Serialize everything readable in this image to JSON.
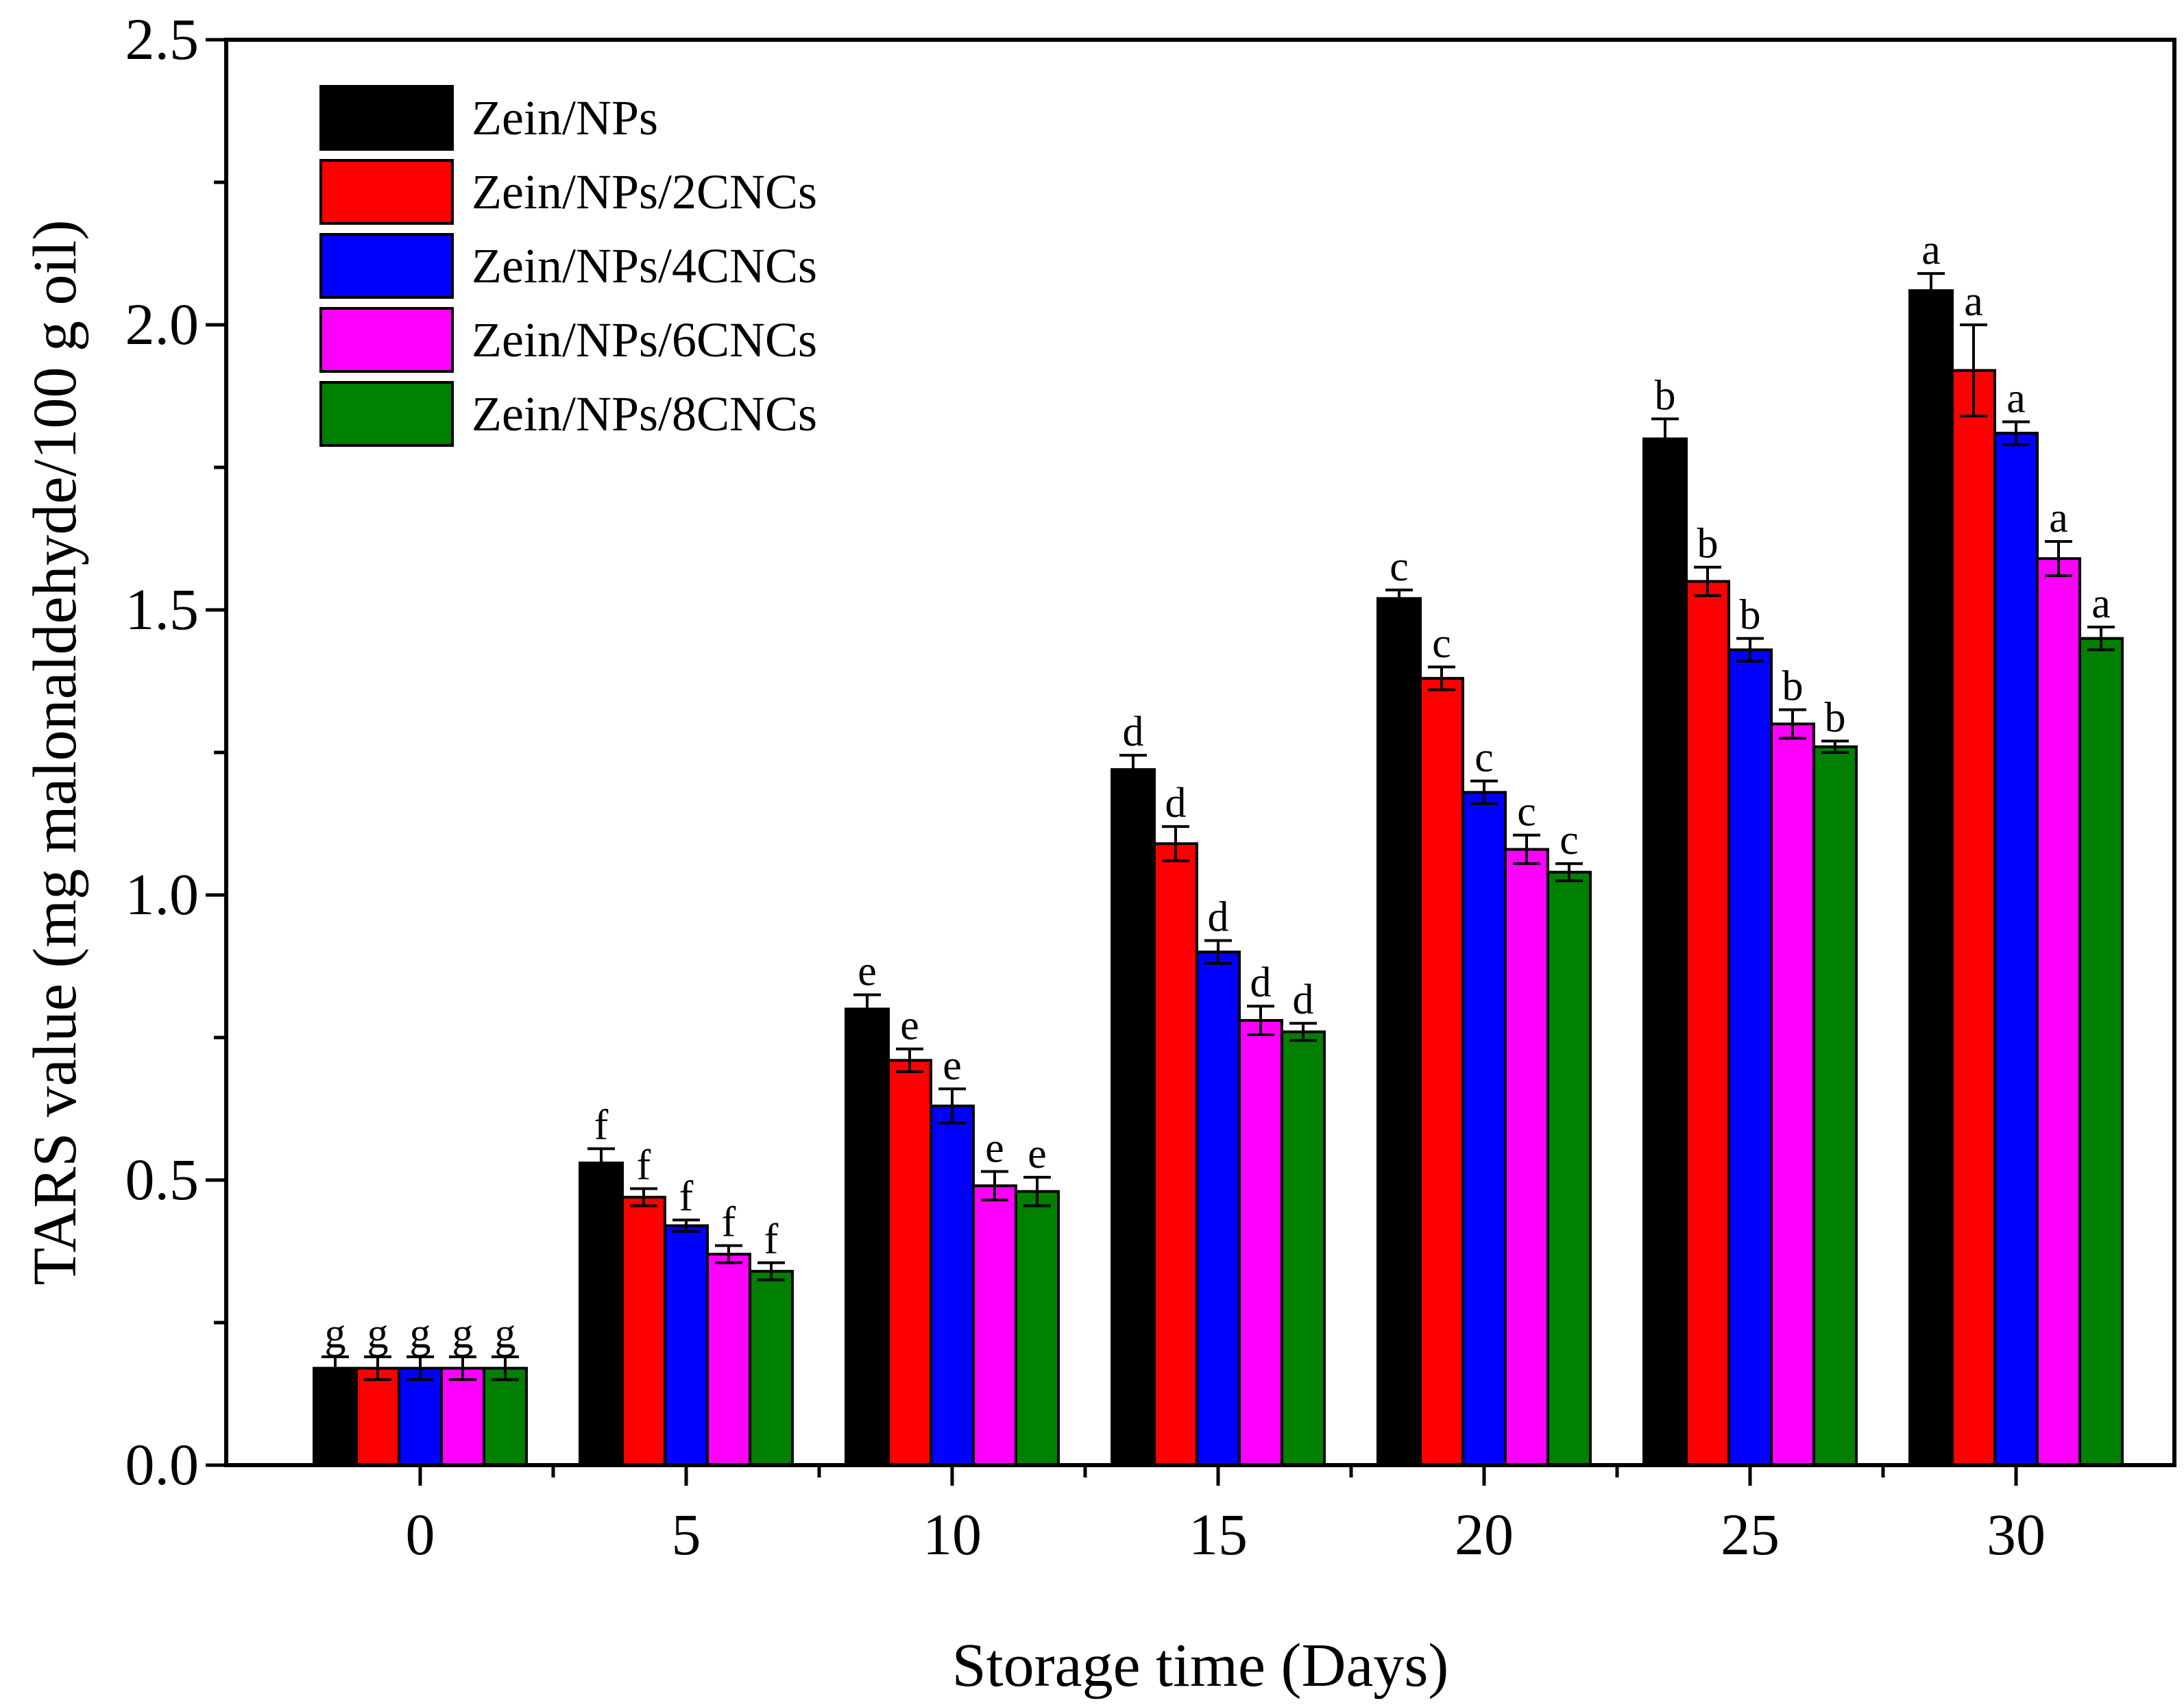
{
  "chart_data": {
    "type": "bar",
    "title": "",
    "xlabel": "Storage time (Days)",
    "ylabel": "TARS value (mg malonaldehyde/100 g oil)",
    "ylim": [
      0,
      2.5
    ],
    "yticks": [
      "0.0",
      "0.5",
      "1.0",
      "1.5",
      "2.0",
      "2.5"
    ],
    "categories": [
      "0",
      "5",
      "10",
      "15",
      "20",
      "25",
      "30"
    ],
    "legend_position": "top-left",
    "series": [
      {
        "name": "Zein/NPs",
        "color": "#000000",
        "values": [
          0.17,
          0.53,
          0.8,
          1.22,
          1.52,
          1.8,
          2.06
        ],
        "errors": [
          0.02,
          0.025,
          0.025,
          0.025,
          0.015,
          0.035,
          0.03
        ],
        "letters": [
          "g",
          "f",
          "e",
          "d",
          "c",
          "b",
          "a"
        ]
      },
      {
        "name": "Zein/NPs/2CNCs",
        "color": "#ff0000",
        "values": [
          0.17,
          0.47,
          0.71,
          1.09,
          1.38,
          1.55,
          1.92
        ],
        "errors": [
          0.02,
          0.015,
          0.02,
          0.03,
          0.02,
          0.025,
          0.08
        ],
        "letters": [
          "g",
          "f",
          "e",
          "d",
          "c",
          "b",
          "a"
        ]
      },
      {
        "name": "Zein/NPs/4CNCs",
        "color": "#0000ff",
        "values": [
          0.17,
          0.42,
          0.63,
          0.9,
          1.18,
          1.43,
          1.81
        ],
        "errors": [
          0.02,
          0.01,
          0.03,
          0.02,
          0.02,
          0.02,
          0.02
        ],
        "letters": [
          "g",
          "f",
          "e",
          "d",
          "c",
          "b",
          "a"
        ]
      },
      {
        "name": "Zein/NPs/6CNCs",
        "color": "#ff00ff",
        "values": [
          0.17,
          0.37,
          0.49,
          0.78,
          1.08,
          1.3,
          1.59
        ],
        "errors": [
          0.02,
          0.015,
          0.025,
          0.025,
          0.025,
          0.025,
          0.03
        ],
        "letters": [
          "g",
          "f",
          "e",
          "d",
          "c",
          "b",
          "a"
        ]
      },
      {
        "name": "Zein/NPs/8CNCs",
        "color": "#008000",
        "values": [
          0.17,
          0.34,
          0.48,
          0.76,
          1.04,
          1.26,
          1.45
        ],
        "errors": [
          0.02,
          0.015,
          0.025,
          0.015,
          0.015,
          0.01,
          0.02
        ],
        "letters": [
          "g",
          "f",
          "e",
          "d",
          "c",
          "b",
          "a"
        ]
      }
    ]
  }
}
